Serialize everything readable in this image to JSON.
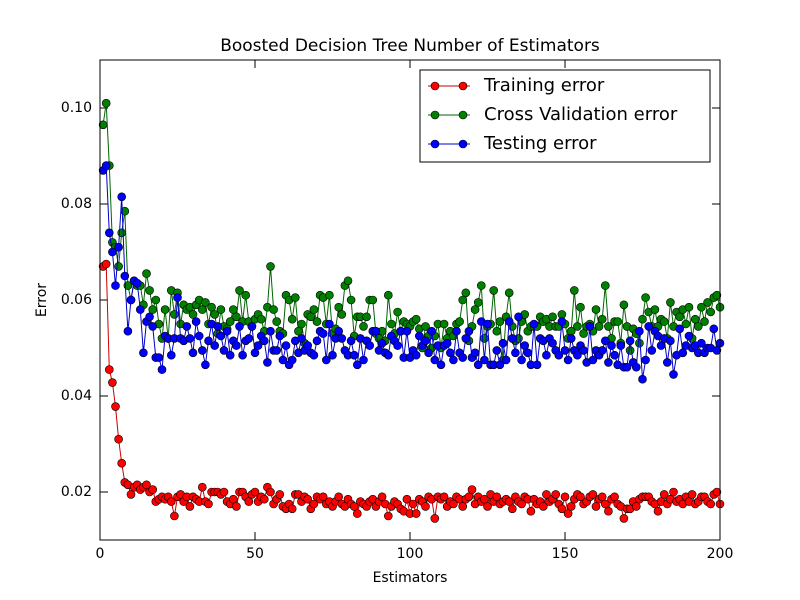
{
  "chart_data": {
    "type": "line",
    "title": "Boosted Decision Tree Number of Estimators",
    "xlabel": "Estimators",
    "ylabel": "Error",
    "xlim": [
      0,
      200
    ],
    "ylim": [
      0.01,
      0.11
    ],
    "xticks": [
      0,
      50,
      100,
      150,
      200
    ],
    "yticks": [
      0.02,
      0.04,
      0.06,
      0.08,
      {
        "value": 0.1,
        "label": "0.10"
      }
    ],
    "legend": "upper right",
    "x": [
      1,
      2,
      3,
      4,
      5,
      6,
      7,
      8,
      9,
      10,
      11,
      12,
      13,
      14,
      15,
      16,
      17,
      18,
      19,
      20,
      21,
      22,
      23,
      24,
      25,
      26,
      27,
      28,
      29,
      30,
      31,
      32,
      33,
      34,
      35,
      36,
      37,
      38,
      39,
      40,
      41,
      42,
      43,
      44,
      45,
      46,
      47,
      48,
      49,
      50,
      51,
      52,
      53,
      54,
      55,
      56,
      57,
      58,
      59,
      60,
      61,
      62,
      63,
      64,
      65,
      66,
      67,
      68,
      69,
      70,
      71,
      72,
      73,
      74,
      75,
      76,
      77,
      78,
      79,
      80,
      81,
      82,
      83,
      84,
      85,
      86,
      87,
      88,
      89,
      90,
      91,
      92,
      93,
      94,
      95,
      96,
      97,
      98,
      99,
      100,
      101,
      102,
      103,
      104,
      105,
      106,
      107,
      108,
      109,
      110,
      111,
      112,
      113,
      114,
      115,
      116,
      117,
      118,
      119,
      120,
      121,
      122,
      123,
      124,
      125,
      126,
      127,
      128,
      129,
      130,
      131,
      132,
      133,
      134,
      135,
      136,
      137,
      138,
      139,
      140,
      141,
      142,
      143,
      144,
      145,
      146,
      147,
      148,
      149,
      150,
      151,
      152,
      153,
      154,
      155,
      156,
      157,
      158,
      159,
      160,
      161,
      162,
      163,
      164,
      165,
      166,
      167,
      168,
      169,
      170,
      171,
      172,
      173,
      174,
      175,
      176,
      177,
      178,
      179,
      180,
      181,
      182,
      183,
      184,
      185,
      186,
      187,
      188,
      189,
      190,
      191,
      192,
      193,
      194,
      195,
      196,
      197,
      198,
      199,
      200
    ],
    "series": [
      {
        "name": "Training error",
        "color": "#ff0000",
        "line_color": "#cc0000",
        "values": [
          0.067,
          0.0675,
          0.0455,
          0.0428,
          0.0378,
          0.031,
          0.026,
          0.022,
          0.0215,
          0.0195,
          0.021,
          0.0215,
          0.0205,
          0.021,
          0.0215,
          0.02,
          0.0205,
          0.018,
          0.0185,
          0.019,
          0.0185,
          0.019,
          0.018,
          0.015,
          0.019,
          0.0195,
          0.018,
          0.019,
          0.017,
          0.019,
          0.0185,
          0.018,
          0.021,
          0.018,
          0.0175,
          0.02,
          0.02,
          0.02,
          0.0195,
          0.02,
          0.018,
          0.0175,
          0.0185,
          0.017,
          0.02,
          0.02,
          0.019,
          0.018,
          0.0195,
          0.02,
          0.018,
          0.019,
          0.0185,
          0.021,
          0.02,
          0.0175,
          0.0185,
          0.0195,
          0.017,
          0.0165,
          0.0175,
          0.0165,
          0.0195,
          0.0195,
          0.018,
          0.019,
          0.0185,
          0.0165,
          0.0175,
          0.019,
          0.0185,
          0.019,
          0.0175,
          0.018,
          0.017,
          0.018,
          0.019,
          0.0175,
          0.017,
          0.0185,
          0.0175,
          0.017,
          0.0155,
          0.018,
          0.0175,
          0.017,
          0.018,
          0.0185,
          0.017,
          0.018,
          0.019,
          0.0175,
          0.015,
          0.017,
          0.018,
          0.0175,
          0.0165,
          0.016,
          0.0185,
          0.0155,
          0.0175,
          0.0155,
          0.0185,
          0.018,
          0.017,
          0.019,
          0.0185,
          0.0145,
          0.019,
          0.0185,
          0.019,
          0.017,
          0.018,
          0.0175,
          0.019,
          0.0185,
          0.017,
          0.0185,
          0.019,
          0.0205,
          0.0175,
          0.019,
          0.018,
          0.0185,
          0.017,
          0.0195,
          0.018,
          0.019,
          0.0175,
          0.018,
          0.0185,
          0.018,
          0.0165,
          0.019,
          0.018,
          0.0175,
          0.019,
          0.0185,
          0.016,
          0.0185,
          0.0175,
          0.018,
          0.017,
          0.0195,
          0.018,
          0.0185,
          0.0195,
          0.0175,
          0.0165,
          0.019,
          0.0155,
          0.017,
          0.0185,
          0.0195,
          0.019,
          0.0175,
          0.018,
          0.019,
          0.0195,
          0.017,
          0.0185,
          0.019,
          0.0175,
          0.016,
          0.0185,
          0.019,
          0.0175,
          0.017,
          0.0145,
          0.0165,
          0.0165,
          0.018,
          0.017,
          0.0185,
          0.019,
          0.019,
          0.019,
          0.018,
          0.0175,
          0.016,
          0.018,
          0.0195,
          0.0175,
          0.0185,
          0.02,
          0.018,
          0.0185,
          0.0175,
          0.019,
          0.018,
          0.0195,
          0.0175,
          0.018,
          0.019,
          0.019,
          0.018,
          0.0175,
          0.0195,
          0.02,
          0.0175
        ]
      },
      {
        "name": "Cross Validation error",
        "color": "#008000",
        "line_color": "#006400",
        "values": [
          0.0965,
          0.101,
          0.088,
          0.072,
          0.071,
          0.067,
          0.074,
          0.0785,
          0.063,
          0.06,
          0.064,
          0.063,
          0.063,
          0.059,
          0.0655,
          0.062,
          0.058,
          0.06,
          0.055,
          0.052,
          0.058,
          0.052,
          0.062,
          0.057,
          0.0615,
          0.055,
          0.059,
          0.058,
          0.0585,
          0.057,
          0.059,
          0.06,
          0.058,
          0.0595,
          0.055,
          0.0585,
          0.057,
          0.053,
          0.058,
          0.0545,
          0.054,
          0.0555,
          0.058,
          0.0565,
          0.062,
          0.0555,
          0.061,
          0.0555,
          0.0545,
          0.056,
          0.057,
          0.056,
          0.0535,
          0.0585,
          0.067,
          0.058,
          0.0555,
          0.0535,
          0.053,
          0.061,
          0.06,
          0.056,
          0.0605,
          0.0535,
          0.055,
          0.051,
          0.057,
          0.0565,
          0.058,
          0.0555,
          0.061,
          0.0605,
          0.055,
          0.061,
          0.053,
          0.054,
          0.0585,
          0.057,
          0.063,
          0.064,
          0.06,
          0.0525,
          0.0565,
          0.0565,
          0.0545,
          0.0565,
          0.06,
          0.06,
          0.053,
          0.052,
          0.0535,
          0.0515,
          0.061,
          0.055,
          0.053,
          0.0575,
          0.0535,
          0.0555,
          0.055,
          0.0545,
          0.0555,
          0.056,
          0.054,
          0.05,
          0.0545,
          0.0525,
          0.05,
          0.0525,
          0.055,
          0.05,
          0.055,
          0.052,
          0.0535,
          0.0525,
          0.055,
          0.0555,
          0.06,
          0.0615,
          0.0515,
          0.0545,
          0.058,
          0.0595,
          0.063,
          0.052,
          0.0545,
          0.055,
          0.062,
          0.0535,
          0.0555,
          0.0475,
          0.0565,
          0.0615,
          0.0545,
          0.0515,
          0.052,
          0.0555,
          0.057,
          0.0535,
          0.0545,
          0.0545,
          0.0545,
          0.0565,
          0.0555,
          0.056,
          0.0545,
          0.0565,
          0.0545,
          0.0545,
          0.057,
          0.055,
          0.052,
          0.0535,
          0.062,
          0.0545,
          0.0585,
          0.053,
          0.0545,
          0.055,
          0.0535,
          0.058,
          0.0545,
          0.056,
          0.063,
          0.0545,
          0.052,
          0.0555,
          0.0555,
          0.051,
          0.059,
          0.0545,
          0.0495,
          0.054,
          0.053,
          0.051,
          0.056,
          0.0605,
          0.0575,
          0.0545,
          0.058,
          0.0545,
          0.056,
          0.0555,
          0.052,
          0.0595,
          0.0545,
          0.0575,
          0.0565,
          0.058,
          0.055,
          0.0585,
          0.052,
          0.056,
          0.0545,
          0.0585,
          0.0555,
          0.0595,
          0.0575,
          0.0605,
          0.061,
          0.0585
        ]
      },
      {
        "name": "Testing error",
        "color": "#0000ff",
        "line_color": "#0000cc",
        "values": [
          0.087,
          0.088,
          0.074,
          0.07,
          0.063,
          0.071,
          0.0815,
          0.065,
          0.0535,
          0.06,
          0.064,
          0.0635,
          0.058,
          0.049,
          0.0555,
          0.0565,
          0.0545,
          0.048,
          0.048,
          0.0455,
          0.0525,
          0.052,
          0.0485,
          0.052,
          0.0605,
          0.052,
          0.0515,
          0.0545,
          0.052,
          0.049,
          0.0555,
          0.0525,
          0.0495,
          0.0465,
          0.0515,
          0.055,
          0.0505,
          0.0545,
          0.0525,
          0.0495,
          0.0535,
          0.0485,
          0.0515,
          0.0505,
          0.0545,
          0.0485,
          0.0515,
          0.052,
          0.0545,
          0.049,
          0.0505,
          0.0525,
          0.0515,
          0.047,
          0.0535,
          0.0495,
          0.0495,
          0.0525,
          0.0475,
          0.0505,
          0.0465,
          0.0475,
          0.0515,
          0.049,
          0.052,
          0.0495,
          0.0505,
          0.049,
          0.0485,
          0.0515,
          0.0535,
          0.053,
          0.0475,
          0.055,
          0.0485,
          0.052,
          0.0535,
          0.052,
          0.0495,
          0.0485,
          0.0515,
          0.0485,
          0.0465,
          0.052,
          0.0475,
          0.0515,
          0.0505,
          0.0535,
          0.0535,
          0.0495,
          0.051,
          0.049,
          0.0485,
          0.0525,
          0.0515,
          0.0505,
          0.0535,
          0.048,
          0.0535,
          0.048,
          0.0495,
          0.0485,
          0.0525,
          0.0505,
          0.0515,
          0.049,
          0.0535,
          0.0475,
          0.0505,
          0.0465,
          0.0505,
          0.051,
          0.049,
          0.0475,
          0.0535,
          0.049,
          0.048,
          0.052,
          0.0535,
          0.048,
          0.049,
          0.0465,
          0.0555,
          0.0475,
          0.055,
          0.0465,
          0.0465,
          0.0495,
          0.0465,
          0.051,
          0.0475,
          0.0555,
          0.052,
          0.049,
          0.0565,
          0.0475,
          0.0505,
          0.049,
          0.0465,
          0.055,
          0.0465,
          0.052,
          0.0515,
          0.0485,
          0.052,
          0.051,
          0.0495,
          0.0485,
          0.0555,
          0.0495,
          0.0475,
          0.052,
          0.0495,
          0.0485,
          0.0505,
          0.0495,
          0.047,
          0.0545,
          0.0475,
          0.0495,
          0.0485,
          0.0495,
          0.0515,
          0.047,
          0.0505,
          0.0485,
          0.0465,
          0.0505,
          0.046,
          0.046,
          0.0515,
          0.047,
          0.046,
          0.0535,
          0.0435,
          0.0475,
          0.0545,
          0.0495,
          0.0535,
          0.0525,
          0.0505,
          0.052,
          0.047,
          0.0515,
          0.0445,
          0.0485,
          0.054,
          0.049,
          0.0505,
          0.0525,
          0.05,
          0.0505,
          0.049,
          0.051,
          0.049,
          0.05,
          0.05,
          0.054,
          0.0495,
          0.051
        ]
      }
    ]
  }
}
